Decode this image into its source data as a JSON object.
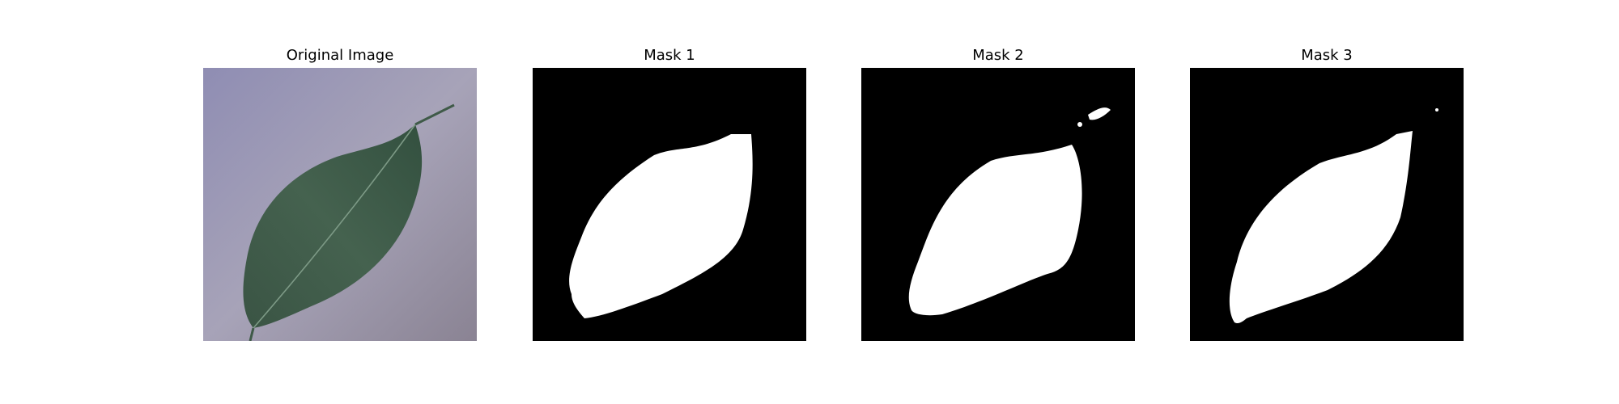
{
  "panels": [
    {
      "title": "Original Image",
      "kind": "photo-leaf"
    },
    {
      "title": "Mask 1",
      "kind": "binary-mask"
    },
    {
      "title": "Mask 2",
      "kind": "binary-mask"
    },
    {
      "title": "Mask 3",
      "kind": "binary-mask"
    }
  ],
  "colors": {
    "background": "#ffffff",
    "mask_background": "#000000",
    "mask_foreground": "#ffffff",
    "leaf": "#3f5a48",
    "surface": "#a19eb4"
  }
}
